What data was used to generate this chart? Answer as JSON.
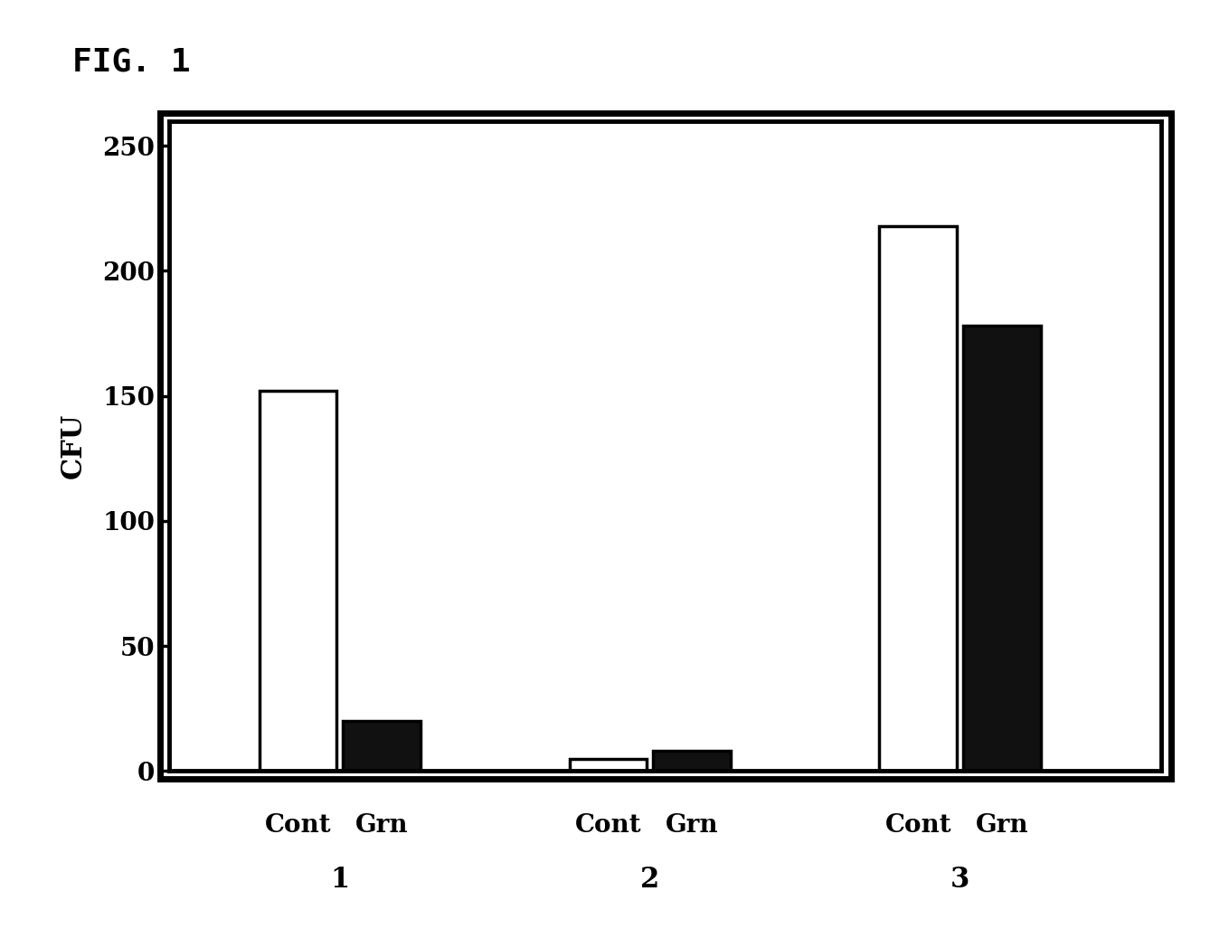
{
  "groups": [
    "1",
    "2",
    "3"
  ],
  "cont_values": [
    152,
    5,
    218
  ],
  "grn_values": [
    20,
    8,
    178
  ],
  "ylabel": "CFU",
  "ylim": [
    0,
    260
  ],
  "yticks": [
    0,
    50,
    100,
    150,
    200,
    250
  ],
  "fig_label": "FIG. 1",
  "bar_width": 0.25,
  "cont_color": "#ffffff",
  "grn_color": "#111111",
  "bar_edge_color": "#000000",
  "background_color": "#ffffff",
  "title_fontsize": 26,
  "axis_fontsize": 22,
  "tick_fontsize": 20,
  "label_fontsize": 20,
  "group_num_fontsize": 22
}
